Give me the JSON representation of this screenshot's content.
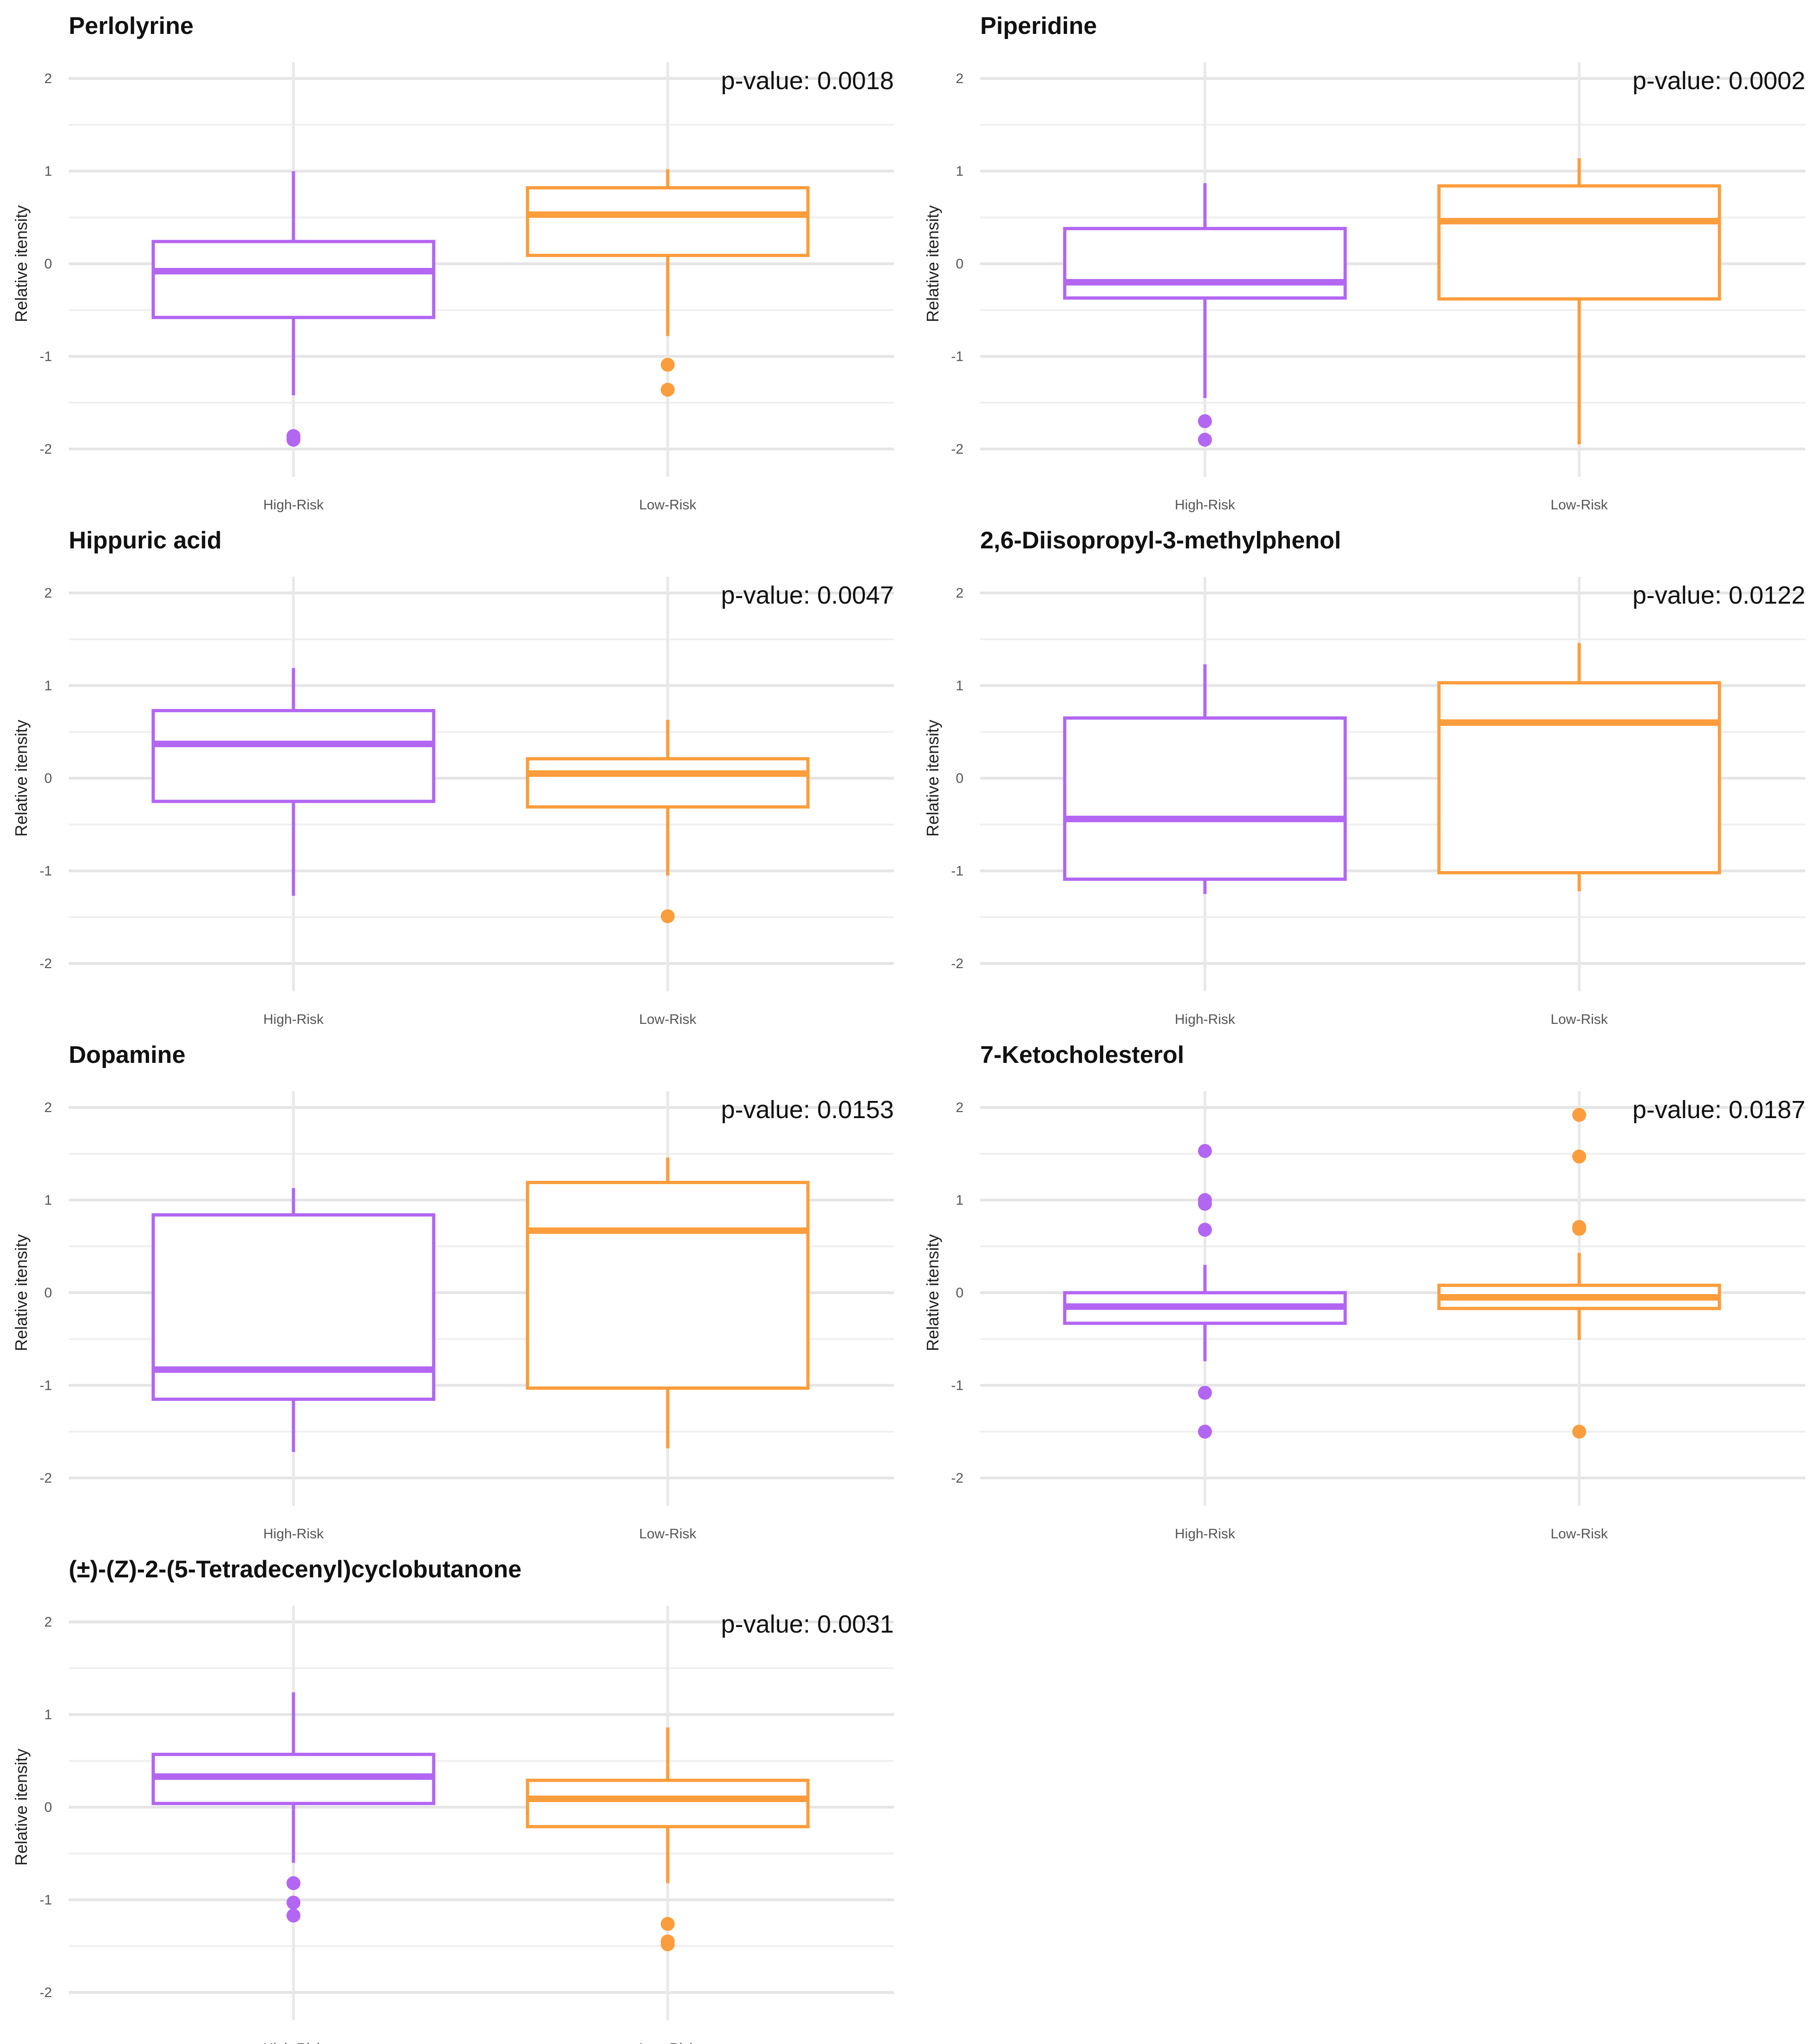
{
  "colors": {
    "High-Risk": "#b266f2",
    "Low-Risk": "#fb9d3c"
  },
  "chart_data": [
    {
      "type": "boxplot",
      "title": "Perlolyrine",
      "annotation": "p-value: 0.0018",
      "ylabel": "Relative itensity",
      "categories": [
        "High-Risk",
        "Low-Risk"
      ],
      "ylim": [
        -2.2,
        2.2
      ],
      "yticks": [
        -2,
        -1,
        0,
        1,
        2
      ],
      "boxes": [
        {
          "group": "High-Risk",
          "whisker_low": -1.42,
          "q1": -0.58,
          "median": -0.08,
          "q3": 0.24,
          "whisker_high": 1.0,
          "outliers": [
            -1.86,
            -1.9
          ]
        },
        {
          "group": "Low-Risk",
          "whisker_low": -0.78,
          "q1": 0.09,
          "median": 0.53,
          "q3": 0.82,
          "whisker_high": 1.02,
          "outliers": [
            -1.09,
            -1.36
          ]
        }
      ]
    },
    {
      "type": "boxplot",
      "title": "Piperidine",
      "annotation": "p-value: 0.0002",
      "ylabel": "Relative itensity",
      "categories": [
        "High-Risk",
        "Low-Risk"
      ],
      "ylim": [
        -2.2,
        2.2
      ],
      "yticks": [
        -2,
        -1,
        0,
        1,
        2
      ],
      "boxes": [
        {
          "group": "High-Risk",
          "whisker_low": -1.45,
          "q1": -0.37,
          "median": -0.2,
          "q3": 0.38,
          "whisker_high": 0.87,
          "outliers": [
            -1.7,
            -1.9
          ]
        },
        {
          "group": "Low-Risk",
          "whisker_low": -1.95,
          "q1": -0.38,
          "median": 0.46,
          "q3": 0.84,
          "whisker_high": 1.14,
          "outliers": []
        }
      ]
    },
    {
      "type": "boxplot",
      "title": "Hippuric acid",
      "annotation": "p-value: 0.0047",
      "ylabel": "Relative itensity",
      "categories": [
        "High-Risk",
        "Low-Risk"
      ],
      "ylim": [
        -2.2,
        2.2
      ],
      "yticks": [
        -2,
        -1,
        0,
        1,
        2
      ],
      "boxes": [
        {
          "group": "High-Risk",
          "whisker_low": -1.27,
          "q1": -0.25,
          "median": 0.37,
          "q3": 0.73,
          "whisker_high": 1.19,
          "outliers": []
        },
        {
          "group": "Low-Risk",
          "whisker_low": -1.05,
          "q1": -0.31,
          "median": 0.05,
          "q3": 0.21,
          "whisker_high": 0.63,
          "outliers": [
            -1.49
          ]
        }
      ]
    },
    {
      "type": "boxplot",
      "title": "2,6-Diisopropyl-3-methylphenol",
      "annotation": "p-value: 0.0122",
      "ylabel": "Relative itensity",
      "categories": [
        "High-Risk",
        "Low-Risk"
      ],
      "ylim": [
        -2.2,
        2.2
      ],
      "yticks": [
        -2,
        -1,
        0,
        1,
        2
      ],
      "boxes": [
        {
          "group": "High-Risk",
          "whisker_low": -1.25,
          "q1": -1.09,
          "median": -0.44,
          "q3": 0.65,
          "whisker_high": 1.23,
          "outliers": []
        },
        {
          "group": "Low-Risk",
          "whisker_low": -1.22,
          "q1": -1.02,
          "median": 0.6,
          "q3": 1.03,
          "whisker_high": 1.46,
          "outliers": []
        }
      ]
    },
    {
      "type": "boxplot",
      "title": "Dopamine",
      "annotation": "p-value: 0.0153",
      "ylabel": "Relative itensity",
      "categories": [
        "High-Risk",
        "Low-Risk"
      ],
      "ylim": [
        -2.2,
        2.2
      ],
      "yticks": [
        -2,
        -1,
        0,
        1,
        2
      ],
      "boxes": [
        {
          "group": "High-Risk",
          "whisker_low": -1.72,
          "q1": -1.15,
          "median": -0.83,
          "q3": 0.84,
          "whisker_high": 1.13,
          "outliers": []
        },
        {
          "group": "Low-Risk",
          "whisker_low": -1.68,
          "q1": -1.03,
          "median": 0.67,
          "q3": 1.19,
          "whisker_high": 1.46,
          "outliers": []
        }
      ]
    },
    {
      "type": "boxplot",
      "title": "7-Ketocholesterol",
      "annotation": "p-value: 0.0187",
      "ylabel": "Relative itensity",
      "categories": [
        "High-Risk",
        "Low-Risk"
      ],
      "ylim": [
        -2.2,
        2.2
      ],
      "yticks": [
        -2,
        -1,
        0,
        1,
        2
      ],
      "boxes": [
        {
          "group": "High-Risk",
          "whisker_low": -0.74,
          "q1": -0.33,
          "median": -0.15,
          "q3": 0.0,
          "whisker_high": 0.3,
          "outliers": [
            1.53,
            1.0,
            0.96,
            0.68,
            -1.08,
            -1.5
          ]
        },
        {
          "group": "Low-Risk",
          "whisker_low": -0.51,
          "q1": -0.17,
          "median": -0.05,
          "q3": 0.08,
          "whisker_high": 0.43,
          "outliers": [
            1.92,
            1.47,
            0.71,
            0.69,
            -1.5
          ]
        }
      ]
    },
    {
      "type": "boxplot",
      "title": "(±)-(Z)-2-(5-Tetradecenyl)cyclobutanone",
      "annotation": "p-value: 0.0031",
      "ylabel": "Relative itensity",
      "categories": [
        "High-Risk",
        "Low-Risk"
      ],
      "ylim": [
        -2.2,
        2.2
      ],
      "yticks": [
        -2,
        -1,
        0,
        1,
        2
      ],
      "boxes": [
        {
          "group": "High-Risk",
          "whisker_low": -0.6,
          "q1": 0.04,
          "median": 0.33,
          "q3": 0.57,
          "whisker_high": 1.24,
          "outliers": [
            -0.82,
            -1.03,
            -1.17
          ]
        },
        {
          "group": "Low-Risk",
          "whisker_low": -0.82,
          "q1": -0.21,
          "median": 0.09,
          "q3": 0.29,
          "whisker_high": 0.86,
          "outliers": [
            -1.26,
            -1.45,
            -1.48
          ]
        }
      ]
    }
  ]
}
